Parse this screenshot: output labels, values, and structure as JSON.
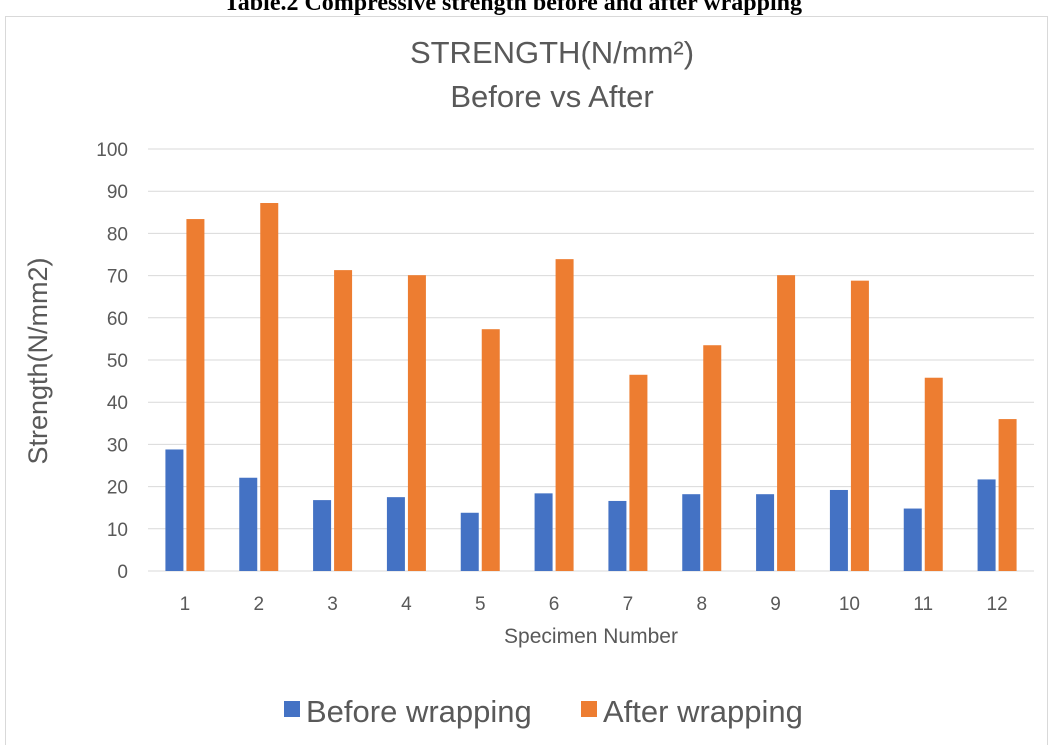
{
  "document": {
    "heading": "Table.2 Compressive strength before and after wrapping"
  },
  "chart_data": {
    "type": "bar",
    "title_line1": "STRENGTH(N/mm²)",
    "title_line2": "Before vs After",
    "xlabel": "Specimen Number",
    "ylabel": "Strength(N/mm2)",
    "ylim": [
      0,
      100
    ],
    "yticks": [
      0,
      10,
      20,
      30,
      40,
      50,
      60,
      70,
      80,
      90,
      100
    ],
    "categories": [
      "1",
      "2",
      "3",
      "4",
      "5",
      "6",
      "7",
      "8",
      "9",
      "10",
      "11",
      "12"
    ],
    "grid": true,
    "legend_position": "bottom",
    "series": [
      {
        "name": "Before wrapping",
        "color": "#4472C4",
        "values": [
          28.8,
          22.1,
          16.8,
          17.5,
          13.8,
          18.4,
          16.6,
          18.2,
          18.2,
          19.2,
          14.8,
          21.7
        ]
      },
      {
        "name": "After wrapping",
        "color": "#ED7D31",
        "values": [
          83.4,
          87.2,
          71.3,
          70.1,
          57.3,
          73.9,
          46.5,
          53.5,
          70.1,
          68.8,
          45.8,
          36.0
        ]
      }
    ]
  }
}
